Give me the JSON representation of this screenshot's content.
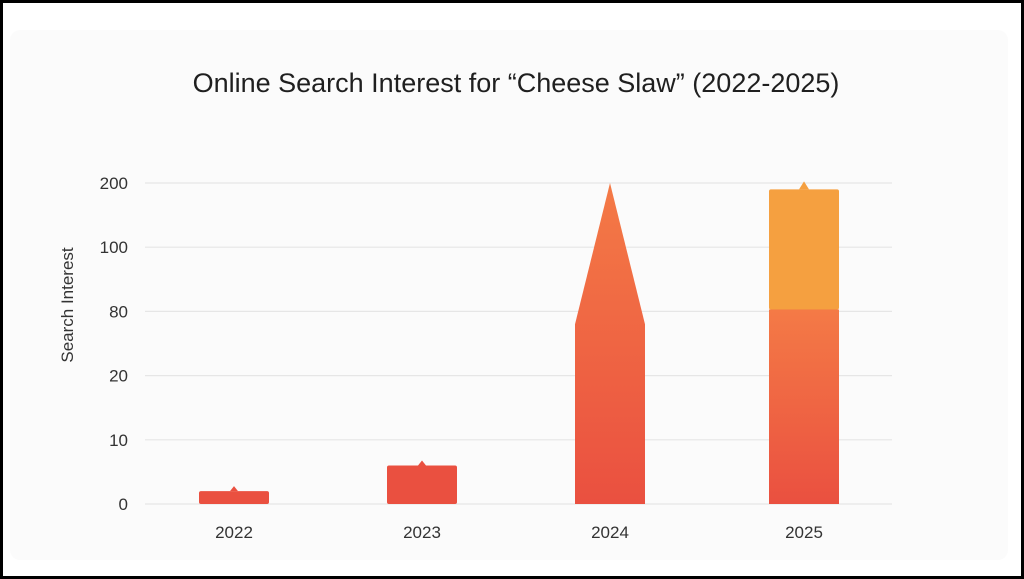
{
  "chart_data": {
    "type": "bar",
    "title": "Online Search Interest for “Cheese Slaw” (2022-2025)",
    "xlabel": "",
    "ylabel": "Search Interest",
    "categories": [
      "2022",
      "2023",
      "2024",
      "2025"
    ],
    "y_tick_labels": [
      "0",
      "10",
      "20",
      "80",
      "100",
      "200"
    ],
    "y_scale": "non-linear (irregular tick spacing)",
    "values": [
      2,
      6,
      200,
      190
    ],
    "grid": true,
    "legend": "none",
    "colors": {
      "bar_bottom": "#ea5040",
      "bar_top": "#f47a46",
      "bar_2025_upper": "#f5a040",
      "grid": "#e6e6e6"
    }
  }
}
